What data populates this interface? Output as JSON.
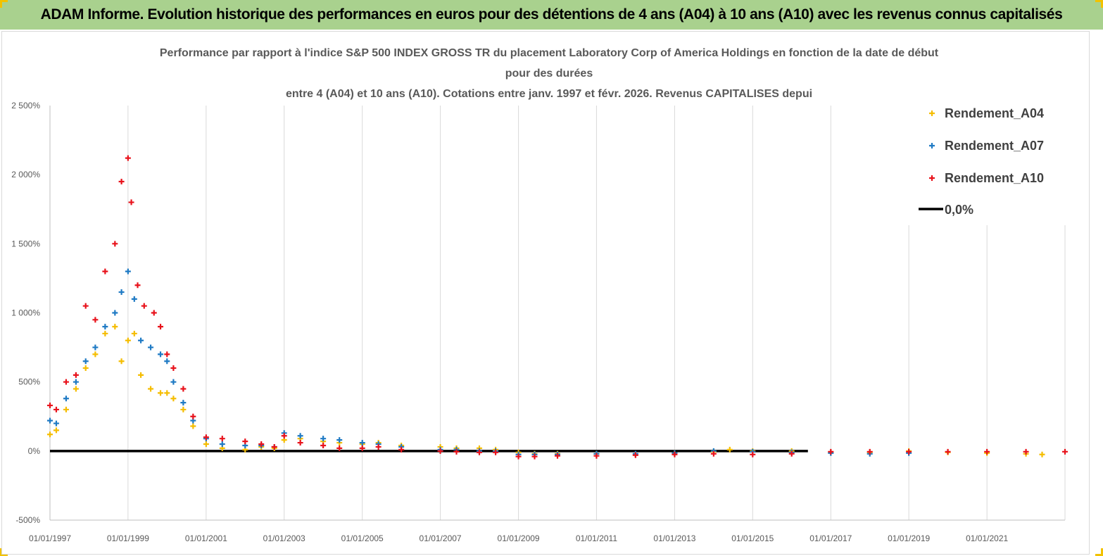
{
  "header": {
    "banner_text": "ADAM Informe. Evolution historique des performances en euros pour des détentions de 4 ans (A04) à 10 ans (A10) avec les revenus connus capitalisés"
  },
  "colors": {
    "banner_bg": "#a9d18e",
    "corner_marks": "#f2c200",
    "A04": "#f5bd00",
    "A07": "#1f7ac4",
    "A10": "#e8121b",
    "zero_line": "#000000"
  },
  "chart_data": {
    "type": "scatter",
    "title_lines": [
      "Performance par rapport à l'indice S&P 500 INDEX GROSS TR  du placement Laboratory Corp of America Holdings en fonction de la date de début",
      "pour des durées",
      "entre 4 (A04) et 10 ans (A10). Cotations entre janv. 1997 et févr. 2026. Revenus CAPITALISES depui"
    ],
    "x_axis": {
      "type": "date",
      "range": [
        "1997-01-01",
        "2023-01-01"
      ],
      "tick_labels": [
        "01/01/1997",
        "01/01/1999",
        "01/01/2001",
        "01/01/2003",
        "01/01/2005",
        "01/01/2007",
        "01/01/2009",
        "01/01/2011",
        "01/01/2013",
        "01/01/2015",
        "01/01/2017",
        "01/01/2019",
        "01/01/2021"
      ]
    },
    "y_axis": {
      "unit": "percent",
      "range": [
        -500,
        2500
      ],
      "ticks": [
        -500,
        0,
        500,
        1000,
        1500,
        2000,
        2500
      ],
      "tick_labels": [
        "-500%",
        "0%",
        "500%",
        "1 000%",
        "1 500%",
        "2 000%",
        "2 500%"
      ]
    },
    "grid": "vertical",
    "legend": {
      "position": "right",
      "entries": [
        "Rendement_A04",
        "Rendement_A07",
        "Rendement_A10",
        "0,0%"
      ]
    },
    "series": [
      {
        "name": "Rendement_A04",
        "marker": "plus",
        "x": [
          "1997-01-01",
          "1997-03-01",
          "1997-06-01",
          "1997-09-01",
          "1997-12-01",
          "1998-03-01",
          "1998-06-01",
          "1998-09-01",
          "1998-11-01",
          "1999-01-01",
          "1999-03-01",
          "1999-05-01",
          "1999-08-01",
          "1999-11-01",
          "2000-01-01",
          "2000-03-01",
          "2000-06-01",
          "2000-09-01",
          "2001-01-01",
          "2001-06-01",
          "2002-01-01",
          "2002-06-01",
          "2002-10-01",
          "2003-01-01",
          "2003-06-01",
          "2004-01-01",
          "2004-06-01",
          "2005-01-01",
          "2005-06-01",
          "2006-01-01",
          "2007-01-01",
          "2007-06-01",
          "2008-01-01",
          "2008-06-01",
          "2009-01-01",
          "2009-06-01",
          "2010-01-01",
          "2011-01-01",
          "2012-01-01",
          "2013-01-01",
          "2014-01-01",
          "2014-06-01",
          "2015-01-01",
          "2016-01-01",
          "2017-01-01",
          "2018-01-01",
          "2019-01-01",
          "2020-01-01",
          "2021-01-01",
          "2022-01-01",
          "2022-06-01"
        ],
        "y": [
          120,
          150,
          300,
          450,
          600,
          700,
          850,
          900,
          650,
          800,
          850,
          550,
          450,
          420,
          420,
          380,
          300,
          180,
          50,
          20,
          10,
          30,
          20,
          80,
          90,
          70,
          60,
          50,
          60,
          40,
          30,
          20,
          20,
          10,
          -10,
          -20,
          -20,
          -20,
          -25,
          -15,
          -5,
          10,
          0,
          0,
          -10,
          -10,
          0,
          -10,
          -15,
          -20,
          -25
        ]
      },
      {
        "name": "Rendement_A07",
        "marker": "plus",
        "x": [
          "1997-01-01",
          "1997-03-01",
          "1997-06-01",
          "1997-09-01",
          "1997-12-01",
          "1998-03-01",
          "1998-06-01",
          "1998-09-01",
          "1998-11-01",
          "1999-01-01",
          "1999-03-01",
          "1999-05-01",
          "1999-08-01",
          "1999-11-01",
          "2000-01-01",
          "2000-03-01",
          "2000-06-01",
          "2000-09-01",
          "2001-01-01",
          "2001-06-01",
          "2002-01-01",
          "2002-06-01",
          "2002-10-01",
          "2003-01-01",
          "2003-06-01",
          "2004-01-01",
          "2004-06-01",
          "2005-01-01",
          "2005-06-01",
          "2006-01-01",
          "2007-01-01",
          "2007-06-01",
          "2008-01-01",
          "2008-06-01",
          "2009-01-01",
          "2009-06-01",
          "2010-01-01",
          "2011-01-01",
          "2012-01-01",
          "2013-01-01",
          "2014-01-01",
          "2015-01-01",
          "2016-01-01",
          "2017-01-01",
          "2018-01-01",
          "2019-01-01"
        ],
        "y": [
          220,
          200,
          380,
          500,
          650,
          750,
          900,
          1000,
          1150,
          1300,
          1100,
          800,
          750,
          700,
          650,
          500,
          350,
          220,
          90,
          50,
          40,
          40,
          30,
          130,
          110,
          90,
          80,
          60,
          50,
          30,
          10,
          10,
          0,
          0,
          -25,
          -25,
          -25,
          -20,
          -20,
          -15,
          0,
          -5,
          -10,
          -15,
          -20,
          -15
        ]
      },
      {
        "name": "Rendement_A10",
        "marker": "plus",
        "x": [
          "1997-01-01",
          "1997-03-01",
          "1997-06-01",
          "1997-09-01",
          "1997-12-01",
          "1998-03-01",
          "1998-06-01",
          "1998-09-01",
          "1998-11-01",
          "1999-01-01",
          "1999-02-01",
          "1999-04-01",
          "1999-06-01",
          "1999-09-01",
          "1999-11-01",
          "2000-01-01",
          "2000-03-01",
          "2000-06-01",
          "2000-09-01",
          "2001-01-01",
          "2001-06-01",
          "2002-01-01",
          "2002-06-01",
          "2002-10-01",
          "2003-01-01",
          "2003-06-01",
          "2004-01-01",
          "2004-06-01",
          "2005-01-01",
          "2005-06-01",
          "2006-01-01",
          "2007-01-01",
          "2007-06-01",
          "2008-01-01",
          "2008-06-01",
          "2009-01-01",
          "2009-06-01",
          "2010-01-01",
          "2011-01-01",
          "2012-01-01",
          "2013-01-01",
          "2014-01-01",
          "2015-01-01",
          "2016-01-01",
          "2017-01-01",
          "2018-01-01",
          "2019-01-01",
          "2020-01-01",
          "2021-01-01",
          "2022-01-01",
          "2023-01-01"
        ],
        "y": [
          330,
          300,
          500,
          550,
          1050,
          950,
          1300,
          1500,
          1950,
          2120,
          1800,
          1200,
          1050,
          1000,
          900,
          700,
          600,
          450,
          250,
          100,
          90,
          70,
          50,
          30,
          110,
          60,
          40,
          20,
          20,
          30,
          10,
          0,
          -5,
          -10,
          -10,
          -40,
          -40,
          -35,
          -35,
          -30,
          -25,
          -20,
          -25,
          -20,
          -5,
          -5,
          -5,
          -5,
          -5,
          -5,
          -5
        ]
      },
      {
        "name": "0,0%",
        "type": "line",
        "x": [
          "1997-01-01",
          "2016-06-01"
        ],
        "y": [
          0,
          0
        ]
      }
    ]
  }
}
